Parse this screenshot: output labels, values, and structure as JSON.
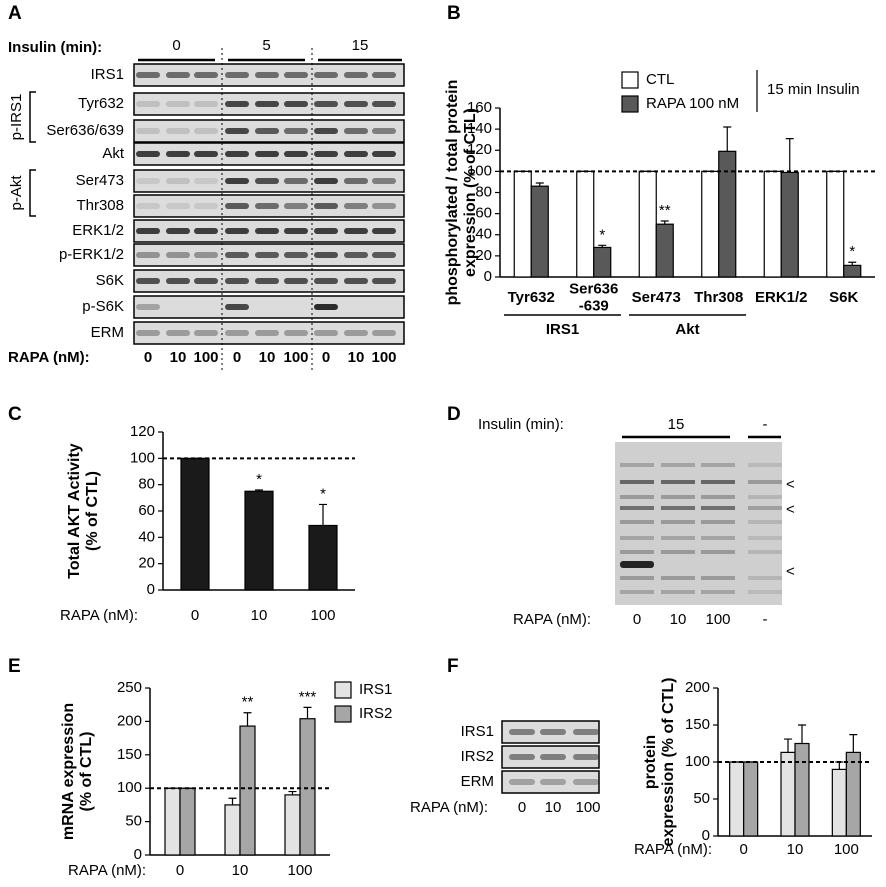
{
  "panel_labels": [
    "A",
    "B",
    "C",
    "D",
    "E",
    "F"
  ],
  "blot_a": {
    "insulin_label": "Insulin (min):",
    "insulin_groups": [
      "0",
      "5",
      "15"
    ],
    "rows": [
      "IRS1",
      "Tyr632",
      "Ser636/639",
      "Akt",
      "Ser473",
      "Thr308",
      "ERK1/2",
      "p-ERK1/2",
      "S6K",
      "p-S6K",
      "ERM"
    ],
    "brackets": [
      "p-IRS1",
      "p-Akt"
    ],
    "rapa_label": "RAPA (nM):",
    "rapa_doses": [
      "0",
      "10",
      "100",
      "0",
      "10",
      "100",
      "0",
      "10",
      "100"
    ]
  },
  "blot_d": {
    "insulin_label": "Insulin (min):",
    "insulin_groups": [
      "15",
      "-"
    ],
    "rapa_label": "RAPA (nM):",
    "rapa_doses": [
      "0",
      "10",
      "100",
      "-"
    ],
    "markers": [
      "<",
      "<",
      "<"
    ]
  },
  "blot_f": {
    "rows": [
      "IRS1",
      "IRS2",
      "ERM"
    ],
    "rapa_label": "RAPA (nM):",
    "rapa_doses": [
      "0",
      "10",
      "100"
    ]
  },
  "chart_data": [
    {
      "type": "bar",
      "ylabel": "phosphorylated / total protein\nexpression (% of CTL)",
      "categories": [
        "Tyr632",
        "Ser636\n-639",
        "Ser473",
        "Thr308",
        "ERK1/2",
        "S6K"
      ],
      "category_groups": [
        "IRS1",
        "IRS1",
        "Akt",
        "Akt",
        null,
        null
      ],
      "legend_title": "15 min Insulin",
      "series": [
        {
          "name": "CTL",
          "color": "#ffffff",
          "values": [
            100,
            100,
            100,
            100,
            100,
            100
          ],
          "errors": [
            0,
            0,
            0,
            0,
            0,
            0
          ],
          "significance": [
            null,
            null,
            null,
            null,
            null,
            null
          ]
        },
        {
          "name": "RAPA 100 nM",
          "color": "#595959",
          "values": [
            86,
            28,
            50,
            119,
            99,
            11
          ],
          "errors": [
            3,
            2,
            3,
            23,
            32,
            3
          ],
          "significance": [
            null,
            "*",
            "**",
            null,
            null,
            "*"
          ]
        }
      ],
      "ylim": [
        0,
        160
      ],
      "yticks": [
        0,
        20,
        40,
        60,
        80,
        100,
        120,
        140,
        160
      ],
      "ref_line": 100
    },
    {
      "type": "bar",
      "ylabel": "Total AKT Activity\n(% of CTL)",
      "xlabel": "RAPA (nM):",
      "categories": [
        "0",
        "10",
        "100"
      ],
      "color": "#1a1a1a",
      "values": [
        100,
        75,
        49
      ],
      "errors": [
        0,
        1,
        16
      ],
      "significance": [
        null,
        "*",
        "*"
      ],
      "ylim": [
        0,
        120
      ],
      "yticks": [
        0,
        20,
        40,
        60,
        80,
        100,
        120
      ],
      "ref_line": 100
    },
    {
      "type": "bar",
      "ylabel": "mRNA expression\n(% of CTL)",
      "xlabel": "RAPA (nM):",
      "categories": [
        "0",
        "10",
        "100"
      ],
      "series": [
        {
          "name": "IRS1",
          "color": "#e3e3e3",
          "values": [
            100,
            75,
            90
          ],
          "errors": [
            0,
            10,
            5
          ],
          "significance": [
            null,
            null,
            null
          ]
        },
        {
          "name": "IRS2",
          "color": "#a6a6a6",
          "values": [
            100,
            193,
            204
          ],
          "errors": [
            0,
            20,
            17
          ],
          "significance": [
            null,
            "**",
            "***"
          ]
        }
      ],
      "ylim": [
        0,
        250
      ],
      "yticks": [
        0,
        50,
        100,
        150,
        200,
        250
      ],
      "ref_line": 100
    },
    {
      "type": "bar",
      "ylabel": "protein\nexpression (% of CTL)",
      "xlabel": "RAPA (nM):",
      "categories": [
        "0",
        "10",
        "100"
      ],
      "series": [
        {
          "color": "#e3e3e3",
          "values": [
            100,
            113,
            90
          ],
          "errors": [
            0,
            18,
            10
          ],
          "significance": [
            null,
            null,
            null
          ]
        },
        {
          "color": "#a6a6a6",
          "values": [
            100,
            125,
            113
          ],
          "errors": [
            0,
            25,
            24
          ],
          "significance": [
            null,
            null,
            null
          ]
        }
      ],
      "ylim": [
        0,
        200
      ],
      "yticks": [
        0,
        50,
        100,
        150,
        200
      ],
      "ref_line": 100
    }
  ]
}
